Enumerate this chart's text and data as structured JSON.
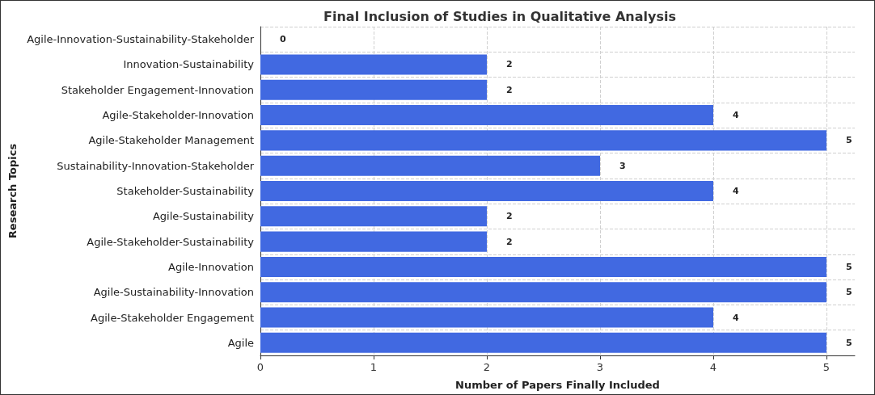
{
  "chart_data": {
    "type": "bar",
    "orientation": "horizontal",
    "title": "Final Inclusion of Studies in Qualitative Analysis",
    "xlabel": "Number of Papers Finally Included",
    "ylabel": "Research Topics",
    "categories": [
      "Agile-Innovation-Sustainability-Stakeholder",
      "Innovation-Sustainability",
      "Stakeholder Engagement-Innovation",
      "Agile-Stakeholder-Innovation",
      "Agile-Stakeholder Management",
      "Sustainability-Innovation-Stakeholder",
      "Stakeholder-Sustainability",
      "Agile-Sustainability",
      "Agile-Stakeholder-Sustainability",
      "Agile-Innovation",
      "Agile-Sustainability-Innovation",
      "Agile-Stakeholder Engagement",
      "Agile"
    ],
    "values": [
      0,
      2,
      2,
      4,
      5,
      3,
      4,
      2,
      2,
      5,
      5,
      4,
      5
    ],
    "color": "#4169e1",
    "xlim": [
      0,
      5.25
    ],
    "xticks": [
      0,
      1,
      2,
      3,
      4,
      5
    ],
    "grid": true,
    "data_labels": true
  }
}
